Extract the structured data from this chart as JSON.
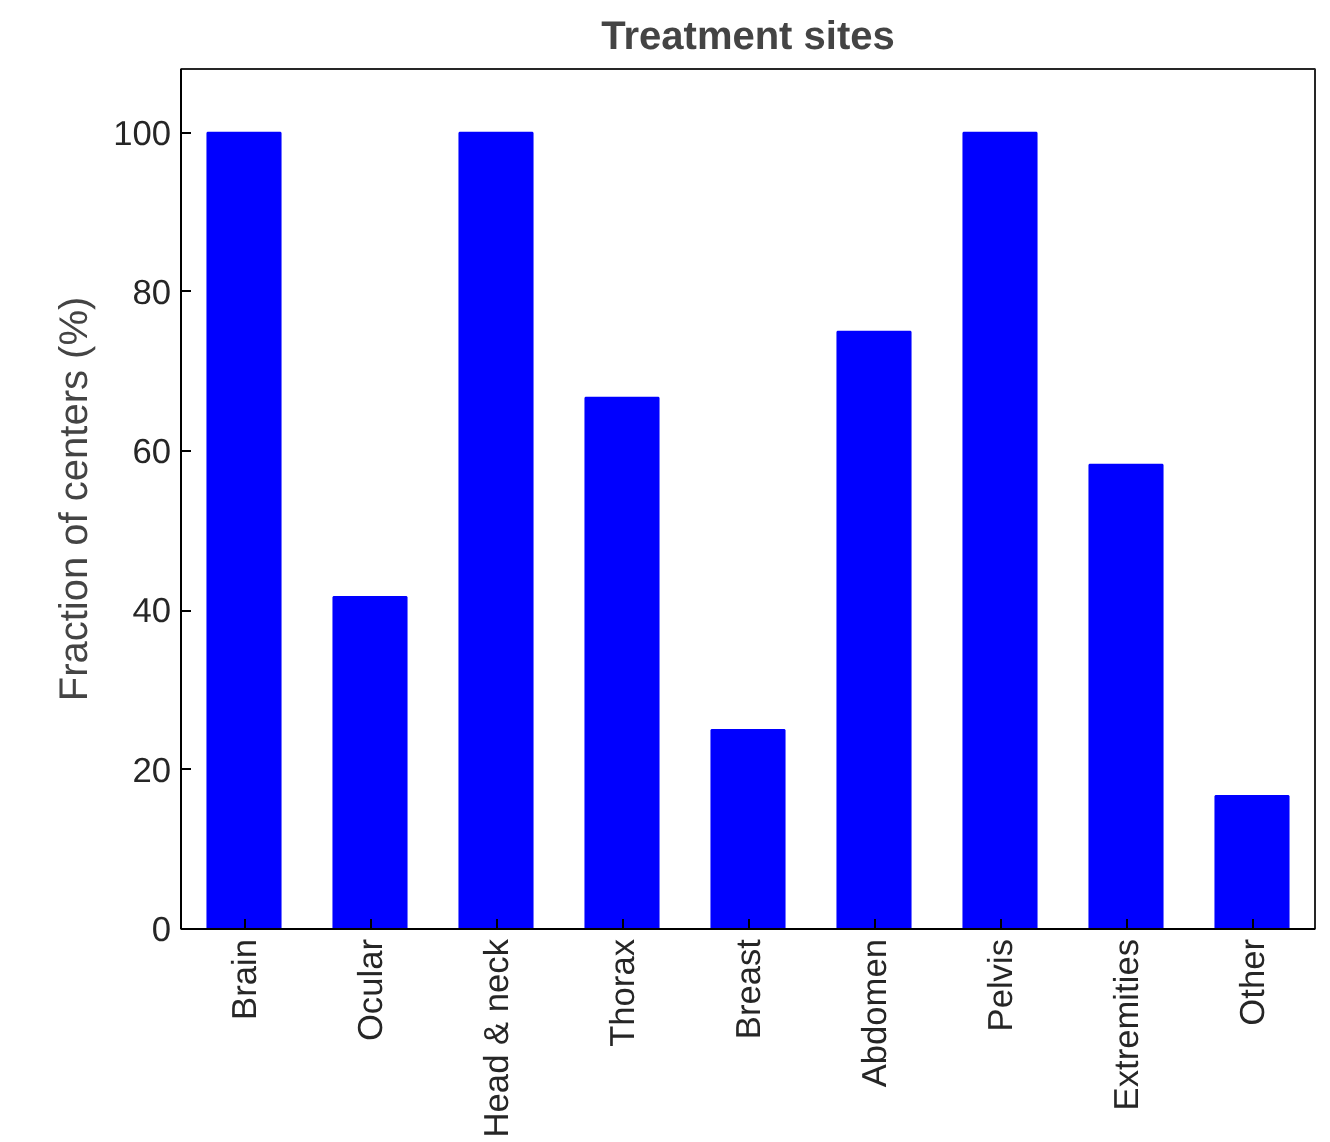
{
  "chart_data": {
    "type": "bar",
    "title": "Treatment sites",
    "ylabel": "Fraction of centers (%)",
    "categories": [
      "Brain",
      "Ocular",
      "Head & neck",
      "Thorax",
      "Breast",
      "Abdomen",
      "Pelvis",
      "Extremities",
      "Other"
    ],
    "values": [
      100,
      41.7,
      100,
      66.7,
      25,
      75,
      100,
      58.3,
      16.7
    ],
    "color": "#0000ff",
    "ylim": [
      0,
      108
    ],
    "yticks": [
      0,
      20,
      40,
      60,
      80,
      100
    ],
    "grid": false
  }
}
